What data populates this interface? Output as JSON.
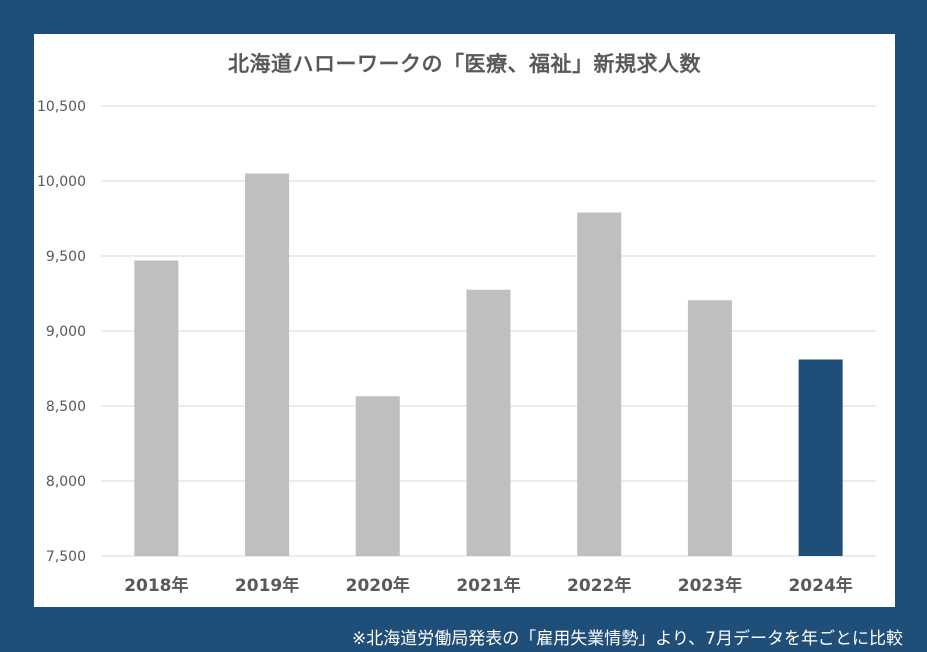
{
  "chart_data": {
    "type": "bar",
    "title": "北海道ハローワークの「医療、福祉」新規求人数",
    "categories": [
      "2018年",
      "2019年",
      "2020年",
      "2021年",
      "2022年",
      "2023年",
      "2024年"
    ],
    "values": [
      9470,
      10050,
      8565,
      9275,
      9790,
      9205,
      8810
    ],
    "ylim": [
      7500,
      10500
    ],
    "yticks": [
      7500,
      8000,
      8500,
      9000,
      9500,
      10000,
      10500
    ],
    "ytick_labels": [
      "7,500",
      "8,000",
      "8,500",
      "9,000",
      "9,500",
      "10,000",
      "10,500"
    ],
    "grid": true,
    "colors": {
      "default_bar": "#bfbfbf",
      "highlight_bar": "#1f4e79",
      "background": "#1f4e79",
      "gridline": "#d9d9d9"
    },
    "highlight_index": 6
  },
  "footnote": "※北海道労働局発表の「雇用失業情勢」より、7月データを年ごとに比較"
}
